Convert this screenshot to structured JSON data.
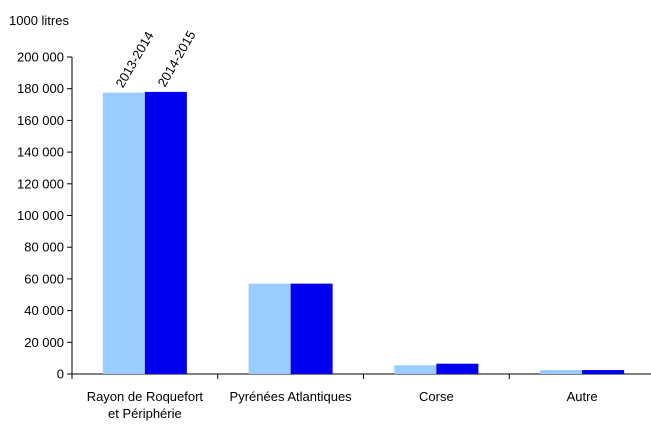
{
  "chart_data": {
    "type": "bar",
    "title": "",
    "ylabel": "1000 litres",
    "xlabel": "",
    "ylim": [
      0,
      200000
    ],
    "yticks": [
      0,
      20000,
      40000,
      60000,
      80000,
      100000,
      120000,
      140000,
      160000,
      180000,
      200000
    ],
    "ytick_labels": [
      "0",
      "20 000",
      "40 000",
      "60 000",
      "80 000",
      "100 000",
      "120 000",
      "140 000",
      "160 000",
      "180 000",
      "200 000"
    ],
    "categories": [
      "Rayon de Roquefort et Périphérie",
      "Pyrénées Atlantiques",
      "Corse",
      "Autre"
    ],
    "category_lines": [
      [
        "Rayon de Roquefort",
        "et Périphérie"
      ],
      [
        "Pyrénées Atlantiques"
      ],
      [
        "Corse"
      ],
      [
        "Autre"
      ]
    ],
    "series": [
      {
        "name": "2013-2014",
        "color": "#99ccff",
        "values": [
          177500,
          57000,
          5500,
          2500
        ]
      },
      {
        "name": "2014-2015",
        "color": "#0000ee",
        "values": [
          178000,
          57000,
          6500,
          2500
        ]
      }
    ],
    "legend": "rotated labels above first category bars",
    "grid": false
  }
}
